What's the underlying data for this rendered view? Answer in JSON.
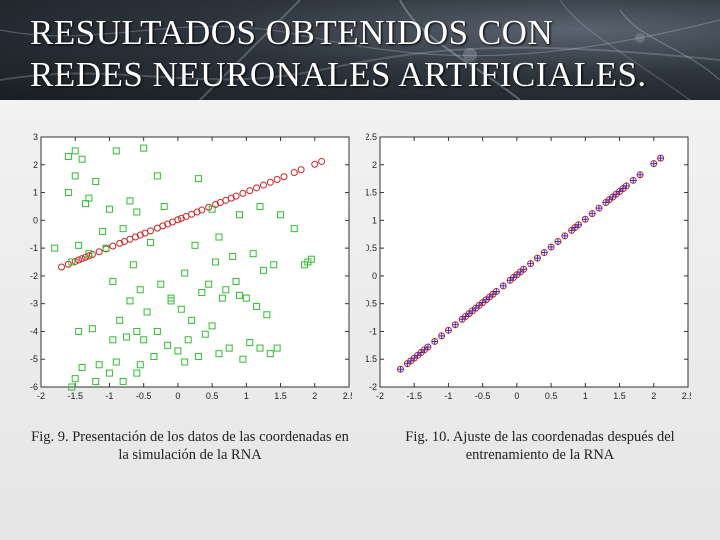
{
  "slide": {
    "title_line1": "RESULTADOS  OBTENIDOS CON",
    "title_line2": "REDES NEURONALES ARTIFICIALES.",
    "caption_left": "Fig. 9. Presentación de los datos de las coordenadas en la simulación de la RNA",
    "caption_right": "Fig. 10. Ajuste de las coordenadas después del entrenamiento de la RNA"
  },
  "chart_data": [
    {
      "type": "scatter",
      "title": "",
      "xlabel": "",
      "ylabel": "",
      "xlim": [
        -2,
        2.5
      ],
      "ylim": [
        -6,
        3
      ],
      "xticks": [
        "-2",
        "-1.5",
        "-1",
        "-0.5",
        "0",
        "0.5",
        "1",
        "1.5",
        "2",
        "2.5"
      ],
      "yticks": [
        "3",
        "2",
        "1",
        "0",
        "-1",
        "-2",
        "-3",
        "-4",
        "-5",
        "-6"
      ],
      "series": [
        {
          "marker": "circle",
          "color": "#cc2222",
          "x": [
            -1.7,
            -1.6,
            -1.5,
            -1.45,
            -1.4,
            -1.35,
            -1.3,
            -1.25,
            -1.15,
            -1.05,
            -0.95,
            -0.85,
            -0.78,
            -0.7,
            -0.62,
            -0.55,
            -0.48,
            -0.4,
            -0.3,
            -0.22,
            -0.15,
            -0.08,
            0.0,
            0.05,
            0.12,
            0.2,
            0.28,
            0.35,
            0.45,
            0.55,
            0.62,
            0.7,
            0.78,
            0.85,
            0.95,
            1.05,
            1.15,
            1.25,
            1.35,
            1.45,
            1.55,
            1.7,
            1.8,
            2.0,
            2.1
          ],
          "y": [
            -1.68,
            -1.58,
            -1.48,
            -1.43,
            -1.38,
            -1.33,
            -1.28,
            -1.23,
            -1.13,
            -1.03,
            -0.93,
            -0.83,
            -0.76,
            -0.68,
            -0.6,
            -0.53,
            -0.46,
            -0.38,
            -0.28,
            -0.2,
            -0.13,
            -0.06,
            0.02,
            0.07,
            0.14,
            0.22,
            0.3,
            0.37,
            0.47,
            0.57,
            0.64,
            0.72,
            0.8,
            0.87,
            0.97,
            1.07,
            1.17,
            1.27,
            1.37,
            1.47,
            1.57,
            1.72,
            1.82,
            2.02,
            2.12
          ]
        },
        {
          "marker": "square",
          "color": "#33bb33",
          "x": [
            -1.5,
            -1.6,
            -1.4,
            -0.9,
            -0.5,
            -1.5,
            -1.2,
            -0.3,
            0.3,
            -1.6,
            -1.3,
            -1.35,
            -1.0,
            -0.7,
            -0.6,
            -0.2,
            0.5,
            0.9,
            1.2,
            1.5,
            -1.1,
            -0.8,
            -1.45,
            -0.4,
            0.25,
            0.6,
            1.7,
            -1.8,
            -1.05,
            -0.65,
            0.55,
            0.8,
            1.1,
            1.4,
            1.85,
            -0.95,
            -0.55,
            -0.25,
            0.1,
            0.45,
            0.85,
            1.25,
            1.95,
            -1.55,
            -1.3,
            -0.7,
            -0.1,
            0.35,
            0.9,
            1.3,
            -0.85,
            -0.45,
            0.05,
            0.5,
            1.15,
            1.0,
            0.7,
            0.2,
            -0.3,
            -0.75,
            -1.25,
            0.4,
            0.75,
            1.05,
            1.35,
            0.15,
            -0.15,
            -0.5,
            -0.9,
            -1.4,
            -1.15,
            -0.6,
            0.0,
            0.6,
            1.2,
            -1.5,
            -1.0,
            -0.55,
            0.3,
            0.95,
            -1.55,
            -1.2,
            -0.8,
            -0.35,
            0.1,
            -1.45,
            -0.95,
            -0.6,
            1.45,
            1.9,
            0.65,
            -0.1
          ],
          "y": [
            2.5,
            2.3,
            2.2,
            2.5,
            2.6,
            1.6,
            1.4,
            1.6,
            1.5,
            1.0,
            0.8,
            0.6,
            0.4,
            0.7,
            0.3,
            0.5,
            0.4,
            0.2,
            0.5,
            0.2,
            -0.4,
            -0.3,
            -0.9,
            -0.8,
            -0.9,
            -0.6,
            -0.3,
            -1.0,
            -1.0,
            -1.6,
            -1.5,
            -1.3,
            -1.2,
            -1.6,
            -1.6,
            -2.2,
            -2.5,
            -2.3,
            -1.9,
            -2.3,
            -2.2,
            -1.8,
            -1.4,
            -1.5,
            -1.2,
            -2.9,
            -2.8,
            -2.6,
            -2.7,
            -3.4,
            -3.6,
            -3.3,
            -3.2,
            -3.8,
            -3.1,
            -2.8,
            -2.5,
            -3.6,
            -4.0,
            -4.2,
            -3.9,
            -4.1,
            -4.6,
            -4.4,
            -4.8,
            -4.3,
            -4.5,
            -4.3,
            -5.1,
            -5.3,
            -5.2,
            -5.5,
            -4.7,
            -4.8,
            -4.6,
            -5.7,
            -5.5,
            -5.2,
            -4.9,
            -5.0,
            -6.0,
            -5.8,
            -5.8,
            -4.9,
            -5.1,
            -4.0,
            -4.3,
            -4.0,
            -4.6,
            -1.5,
            -2.8,
            -2.9
          ]
        }
      ]
    },
    {
      "type": "scatter",
      "title": "",
      "xlabel": "",
      "ylabel": "",
      "xlim": [
        -2,
        2.5
      ],
      "ylim": [
        -2,
        2.5
      ],
      "xticks": [
        "-2",
        "-1.5",
        "-1",
        "-0.5",
        "0",
        "0.5",
        "1",
        "1.5",
        "2",
        "2.5"
      ],
      "yticks": [
        "2.5",
        "2",
        "1.5",
        "1",
        "0.5",
        "0",
        "-0.5",
        "-1",
        "-1.5",
        "-2"
      ],
      "series": [
        {
          "marker": "circle-plus",
          "color": "#2233cc",
          "accent": "#cc2222",
          "x": [
            -1.7,
            -1.6,
            -1.55,
            -1.5,
            -1.45,
            -1.4,
            -1.35,
            -1.3,
            -1.2,
            -1.1,
            -1.0,
            -0.9,
            -0.8,
            -0.75,
            -0.7,
            -0.65,
            -0.6,
            -0.55,
            -0.5,
            -0.45,
            -0.4,
            -0.35,
            -0.3,
            -0.2,
            -0.1,
            -0.05,
            0.0,
            0.05,
            0.1,
            0.2,
            0.3,
            0.4,
            0.5,
            0.6,
            0.7,
            0.8,
            0.85,
            0.9,
            1.0,
            1.1,
            1.2,
            1.3,
            1.35,
            1.4,
            1.45,
            1.5,
            1.55,
            1.6,
            1.7,
            1.8,
            2.0,
            2.1
          ],
          "y": [
            -1.68,
            -1.58,
            -1.53,
            -1.48,
            -1.43,
            -1.38,
            -1.33,
            -1.28,
            -1.18,
            -1.08,
            -0.98,
            -0.88,
            -0.78,
            -0.73,
            -0.68,
            -0.63,
            -0.58,
            -0.53,
            -0.48,
            -0.43,
            -0.38,
            -0.33,
            -0.28,
            -0.18,
            -0.08,
            -0.03,
            0.02,
            0.07,
            0.12,
            0.22,
            0.32,
            0.42,
            0.52,
            0.62,
            0.72,
            0.82,
            0.87,
            0.92,
            1.02,
            1.12,
            1.22,
            1.32,
            1.37,
            1.42,
            1.47,
            1.52,
            1.57,
            1.62,
            1.72,
            1.82,
            2.02,
            2.12
          ]
        }
      ]
    }
  ]
}
